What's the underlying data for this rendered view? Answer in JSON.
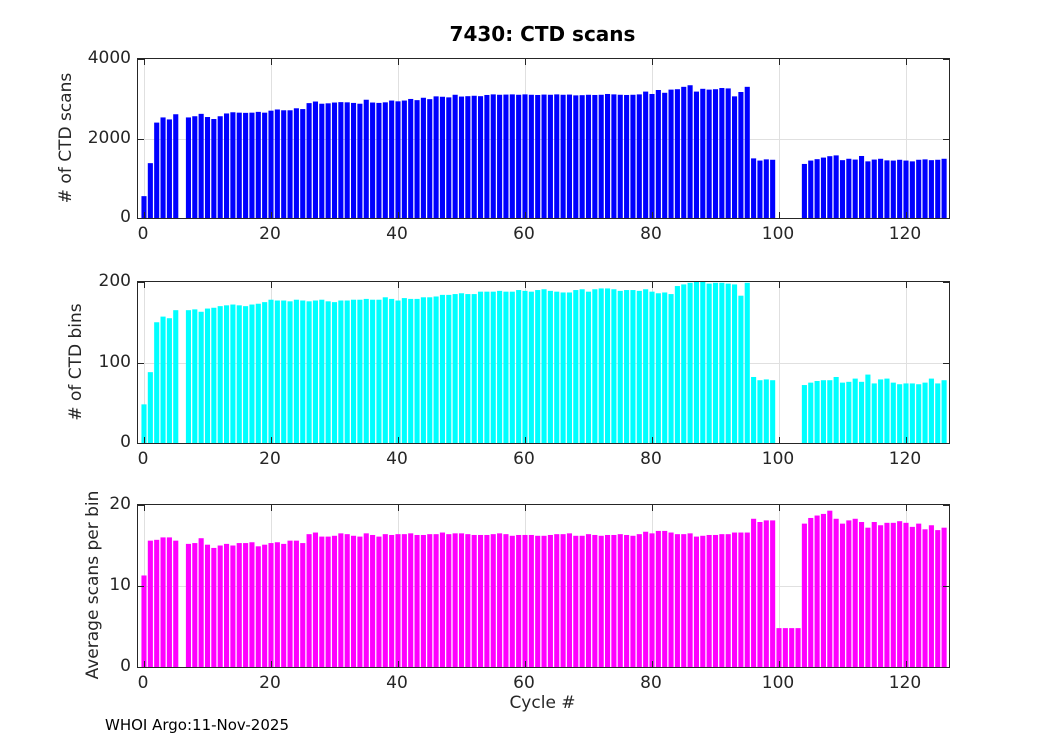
{
  "figure": {
    "title": "7430: CTD scans",
    "xlabel": "Cycle #",
    "footer": "WHOI Argo:11-Nov-2025"
  },
  "chart_data": {
    "type": "bar",
    "title": "7430: CTD scans",
    "xlabel": "Cycle #",
    "annotation": "WHOI Argo:11-Nov-2025",
    "x_start": 0,
    "x_note": "bar index = Argo cycle number 0-126; null = no data for that cycle",
    "xticks": [
      0,
      20,
      40,
      60,
      80,
      100,
      120
    ],
    "xlim": [
      -1,
      127
    ],
    "grid": true,
    "legend": "none",
    "subplots": [
      {
        "name": "ctd-scans",
        "ylabel": "# of CTD scans",
        "ylim": [
          0,
          4000
        ],
        "yticks": [
          0,
          2000,
          4000
        ],
        "color": "#0000ff",
        "values": [
          550,
          1380,
          2400,
          2530,
          2480,
          2610,
          null,
          2530,
          2560,
          2620,
          2540,
          2490,
          2560,
          2630,
          2660,
          2650,
          2645,
          2650,
          2670,
          2650,
          2700,
          2730,
          2710,
          2710,
          2760,
          2740,
          2890,
          2930,
          2875,
          2885,
          2905,
          2915,
          2910,
          2895,
          2875,
          2975,
          2905,
          2895,
          2910,
          2955,
          2935,
          2955,
          2995,
          2965,
          3025,
          2990,
          3060,
          3050,
          3035,
          3100,
          3055,
          3065,
          3075,
          3065,
          3095,
          3110,
          3100,
          3105,
          3110,
          3100,
          3110,
          3100,
          3095,
          3105,
          3100,
          3110,
          3100,
          3105,
          3085,
          3090,
          3100,
          3095,
          3100,
          3120,
          3110,
          3100,
          3095,
          3100,
          3110,
          3180,
          3120,
          3220,
          3150,
          3230,
          3240,
          3300,
          3340,
          3180,
          3250,
          3230,
          3240,
          3270,
          3260,
          3060,
          3170,
          3300,
          1500,
          1445,
          1475,
          1465,
          null,
          null,
          null,
          null,
          1360,
          1445,
          1480,
          1520,
          1555,
          1575,
          1455,
          1490,
          1470,
          1560,
          1425,
          1470,
          1490,
          1450,
          1445,
          1465,
          1445,
          1425,
          1465,
          1475,
          1455,
          1465,
          1490
        ]
      },
      {
        "name": "ctd-bins",
        "ylabel": "# of CTD bins",
        "ylim": [
          0,
          200
        ],
        "yticks": [
          0,
          100,
          200
        ],
        "color": "#00ffff",
        "values": [
          48,
          88,
          150,
          157,
          155,
          165,
          null,
          165,
          166,
          163,
          167,
          168,
          170,
          171,
          172,
          171,
          170,
          172,
          173,
          175,
          178,
          177,
          177,
          176,
          178,
          177,
          176,
          177,
          178,
          176,
          175,
          177,
          177,
          178,
          178,
          179,
          178,
          178,
          181,
          179,
          177,
          180,
          179,
          179,
          181,
          181,
          182,
          184,
          184,
          185,
          186,
          185,
          185,
          188,
          188,
          188,
          189,
          188,
          188,
          190,
          189,
          188,
          190,
          191,
          189,
          188,
          187,
          187,
          190,
          191,
          188,
          191,
          192,
          192,
          191,
          189,
          190,
          190,
          189,
          191,
          188,
          186,
          187,
          185,
          195,
          197,
          199,
          200,
          200,
          198,
          199,
          199,
          198,
          197,
          183,
          199,
          82,
          78,
          79,
          78,
          null,
          null,
          null,
          null,
          72,
          75,
          77,
          78,
          78,
          82,
          75,
          76,
          80,
          76,
          85,
          74,
          79,
          80,
          75,
          73,
          74,
          74,
          73,
          75,
          80,
          74,
          78
        ]
      },
      {
        "name": "avg-scans-per-bin",
        "ylabel": "Average scans per bin",
        "ylim": [
          0,
          20
        ],
        "yticks": [
          0,
          10,
          20
        ],
        "color": "#ff00ff",
        "values": [
          11.3,
          15.6,
          15.7,
          16.0,
          16.0,
          15.6,
          null,
          15.2,
          15.3,
          15.9,
          15.1,
          14.7,
          15.0,
          15.2,
          15.0,
          15.3,
          15.3,
          15.4,
          14.9,
          15.1,
          15.3,
          15.4,
          15.2,
          15.6,
          15.6,
          15.3,
          16.4,
          16.6,
          16.1,
          16.1,
          16.2,
          16.5,
          16.4,
          16.2,
          16.1,
          16.5,
          16.3,
          16.1,
          16.4,
          16.3,
          16.4,
          16.4,
          16.5,
          16.3,
          16.3,
          16.4,
          16.4,
          16.6,
          16.4,
          16.5,
          16.5,
          16.4,
          16.3,
          16.3,
          16.3,
          16.4,
          16.5,
          16.4,
          16.2,
          16.3,
          16.3,
          16.3,
          16.2,
          16.2,
          16.3,
          16.4,
          16.4,
          16.5,
          16.2,
          16.2,
          16.4,
          16.3,
          16.2,
          16.3,
          16.3,
          16.4,
          16.3,
          16.2,
          16.4,
          16.7,
          16.5,
          16.8,
          16.8,
          16.6,
          16.4,
          16.4,
          16.5,
          16.1,
          16.2,
          16.3,
          16.3,
          16.4,
          16.4,
          16.6,
          16.6,
          16.6,
          18.3,
          17.9,
          18.1,
          18.1,
          4.8,
          4.8,
          4.8,
          4.8,
          17.7,
          18.4,
          18.7,
          18.9,
          19.3,
          18.3,
          17.7,
          18.1,
          18.3,
          17.9,
          17.2,
          17.9,
          17.5,
          17.8,
          17.8,
          18.0,
          17.8,
          17.3,
          17.7,
          17.0,
          17.5,
          16.9,
          17.2
        ]
      }
    ]
  },
  "style": {
    "grid_color": "#e0e0e0",
    "axis_color": "#262626",
    "background": "#ffffff"
  }
}
